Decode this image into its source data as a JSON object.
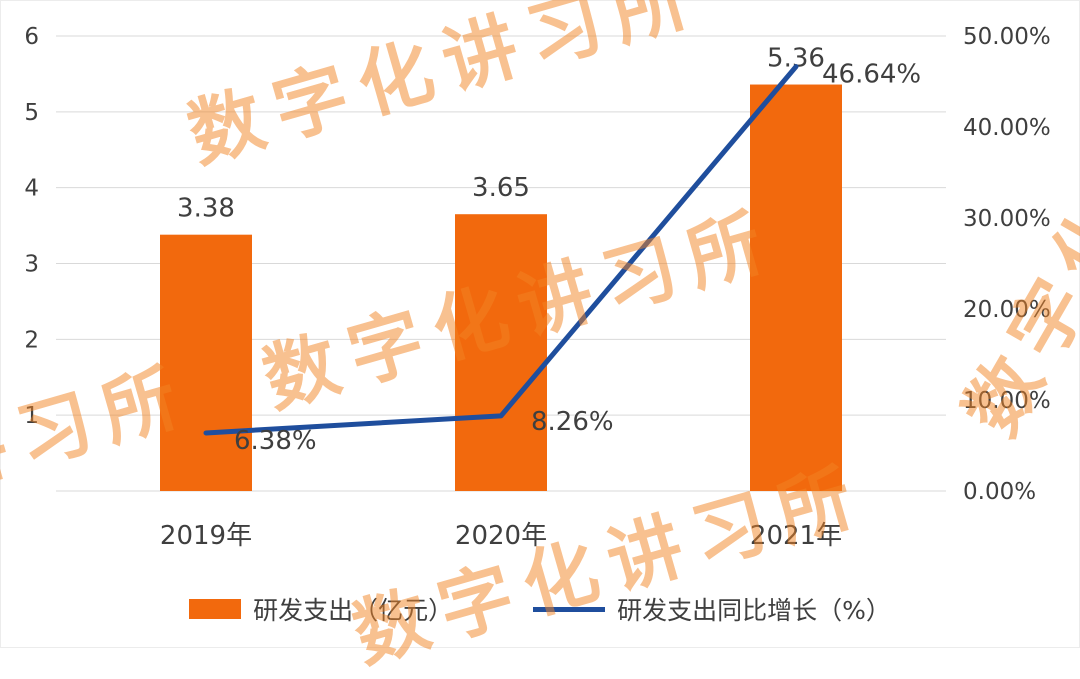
{
  "watermark": {
    "text": "数字化讲习所",
    "color": "#F28424",
    "opacity": 0.5
  },
  "chart_data": {
    "type": "combo-bar-line",
    "categories": [
      "2019年",
      "2020年",
      "2021年"
    ],
    "series": [
      {
        "name": "研发支出（亿元）",
        "chart_type": "bar",
        "axis": "left",
        "color": "#F2690D",
        "values": [
          3.38,
          3.65,
          5.36
        ],
        "data_labels": [
          "3.38",
          "3.65",
          "5.36"
        ]
      },
      {
        "name": "研发支出同比增长（%）",
        "chart_type": "line",
        "axis": "right",
        "color": "#1F4E9D",
        "values": [
          6.38,
          8.26,
          46.64
        ],
        "data_labels": [
          "6.38%",
          "8.26%",
          "46.64%"
        ]
      }
    ],
    "left_axis": {
      "min": 0,
      "max": 6,
      "tick_labels": [
        "6",
        "5",
        "4",
        "3",
        "2",
        "1"
      ]
    },
    "right_axis": {
      "min": 0,
      "max": 50,
      "tick_labels": [
        "50.00%",
        "40.00%",
        "30.00%",
        "20.00%",
        "10.00%",
        "0.00%"
      ]
    },
    "grid": true,
    "grid_color": "#D9D9D9",
    "text_color": "#3F3F3F",
    "legend_position": "bottom"
  }
}
